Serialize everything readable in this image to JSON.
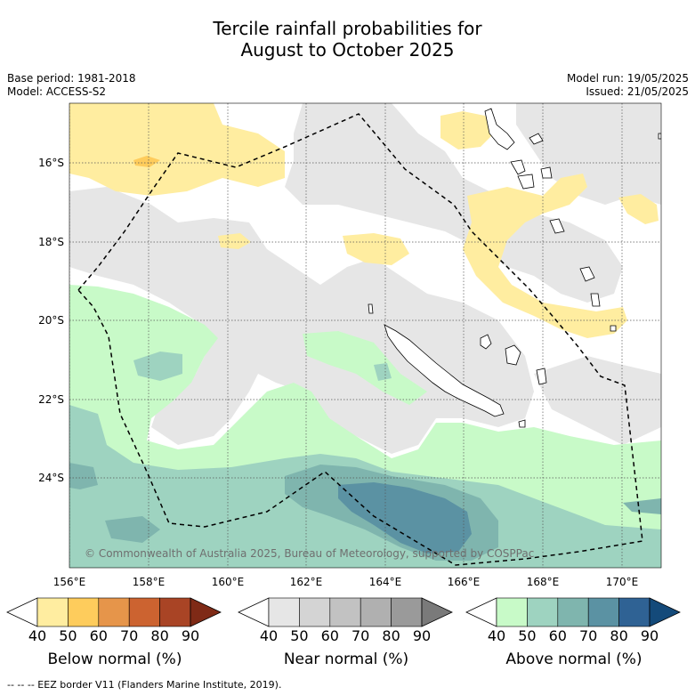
{
  "title": {
    "line1": "Tercile rainfall probabilities for",
    "line2": "August to October 2025"
  },
  "base_period": "Base period: 1981-2018",
  "model": "Model: ACCESS-S2",
  "model_run": "Model run: 19/05/2025",
  "issued": "Issued: 21/05/2025",
  "map": {
    "region": "New Caledonia",
    "lat_labels": [
      "16°S",
      "18°S",
      "20°S",
      "22°S",
      "24°S"
    ],
    "lon_labels": [
      "156°E",
      "158°E",
      "160°E",
      "162°E",
      "164°E",
      "166°E",
      "168°E",
      "170°E"
    ],
    "copyright": "© Commonwealth of Australia 2025, Bureau of Meteorology, supported by COSPPac",
    "grid": true
  },
  "legend": {
    "below": {
      "label": "Below normal (%)",
      "ticks": [
        "40",
        "50",
        "60",
        "70",
        "80",
        "90"
      ],
      "colors": [
        "#ffffff",
        "#ffeda0",
        "#fecc5c",
        "#e6954a",
        "#cc6330",
        "#a94425",
        "#7f2a16"
      ]
    },
    "near": {
      "label": "Near normal (%)",
      "ticks": [
        "40",
        "50",
        "60",
        "70",
        "80",
        "90"
      ],
      "colors": [
        "#ffffff",
        "#e6e6e6",
        "#d4d4d4",
        "#c2c2c2",
        "#b0b0b0",
        "#9a9a9a",
        "#7a7a7a"
      ]
    },
    "above": {
      "label": "Above normal (%)",
      "ticks": [
        "40",
        "50",
        "60",
        "70",
        "80",
        "90"
      ],
      "colors": [
        "#ffffff",
        "#c8fac8",
        "#9ed3c0",
        "#7fb5ae",
        "#5b92a3",
        "#2f6294",
        "#144a7a"
      ]
    }
  },
  "footer": "--  --  -- EEZ border V11 (Flanders Marine Institute, 2019)."
}
